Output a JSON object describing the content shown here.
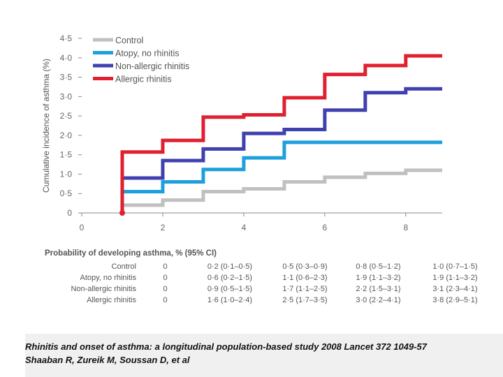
{
  "chart_data": {
    "type": "line",
    "step": true,
    "title": "",
    "xlabel": "",
    "ylabel": "Cumulative incidence of asthma (%)",
    "xlim": [
      0,
      8.9
    ],
    "ylim": [
      0,
      4.5
    ],
    "xticks": [
      0,
      2,
      4,
      6,
      8
    ],
    "xtick_labels": [
      "0",
      "2",
      "4",
      "6",
      "8"
    ],
    "yticks": [
      0,
      0.5,
      1.0,
      1.5,
      2.0,
      2.5,
      3.0,
      3.5,
      4.0,
      4.5
    ],
    "ytick_labels": [
      "0",
      "0·5",
      "1·0",
      "1·5",
      "2·0",
      "2·5",
      "3·0",
      "3·5",
      "4·0",
      "4·5"
    ],
    "legend_position": "top-left",
    "series": [
      {
        "name": "Control",
        "color": "#c0c0c0",
        "x": [
          1,
          1,
          2,
          3,
          4,
          5,
          6,
          7,
          8,
          8.9
        ],
        "y": [
          0,
          0.2,
          0.33,
          0.55,
          0.62,
          0.8,
          0.92,
          1.02,
          1.1,
          1.1
        ]
      },
      {
        "name": "Atopy, no rhinitis",
        "color": "#1ea0dc",
        "x": [
          1,
          1,
          2,
          3,
          4,
          5,
          8.9
        ],
        "y": [
          0,
          0.55,
          0.8,
          1.12,
          1.42,
          1.82,
          1.82
        ]
      },
      {
        "name": "Non-allergic rhinitis",
        "color": "#4040b0",
        "x": [
          1,
          1,
          2,
          3,
          4,
          5,
          6,
          7,
          8,
          8.9
        ],
        "y": [
          0,
          0.9,
          1.35,
          1.65,
          2.05,
          2.15,
          2.65,
          3.1,
          3.2,
          3.2
        ]
      },
      {
        "name": "Allergic rhinitis",
        "color": "#e02030",
        "x": [
          1,
          1,
          2,
          3,
          4,
          5,
          6,
          7,
          8,
          8.9
        ],
        "y": [
          0,
          1.57,
          1.87,
          2.47,
          2.53,
          2.97,
          3.57,
          3.8,
          4.05,
          4.05
        ]
      }
    ]
  },
  "prob_table": {
    "title": "Probability of developing asthma, % (95% CI)",
    "rows": [
      {
        "label": "Control",
        "values": [
          "0",
          "0·2 (0·1–0·5)",
          "0·5 (0·3–0·9)",
          "0·8 (0·5–1·2)",
          "1·0 (0·7–1·5)"
        ]
      },
      {
        "label": "Atopy, no rhinitis",
        "values": [
          "0",
          "0·6 (0·2–1·5)",
          "1·1 (0·6–2·3)",
          "1·9 (1·1–3·2)",
          "1·9 (1·1–3·2)"
        ]
      },
      {
        "label": "Non-allergic rhinitis",
        "values": [
          "0",
          "0·9 (0·5–1·5)",
          "1·7 (1·1–2·5)",
          "2·2 (1·5–3·1)",
          "3·1 (2·3–4·1)"
        ]
      },
      {
        "label": "Allergic rhinitis",
        "values": [
          "0",
          "1·6 (1·0–2·4)",
          "2·5 (1·7–3·5)",
          "3·0 (2·2–4·1)",
          "3·8 (2·9–5·1)"
        ]
      }
    ]
  },
  "citation": {
    "line1": "Rhinitis and onset of asthma: a longitudinal population-based study 2008 Lancet 372 1049-57",
    "line2": "Shaaban R, Zureik M, Soussan D, et al"
  }
}
